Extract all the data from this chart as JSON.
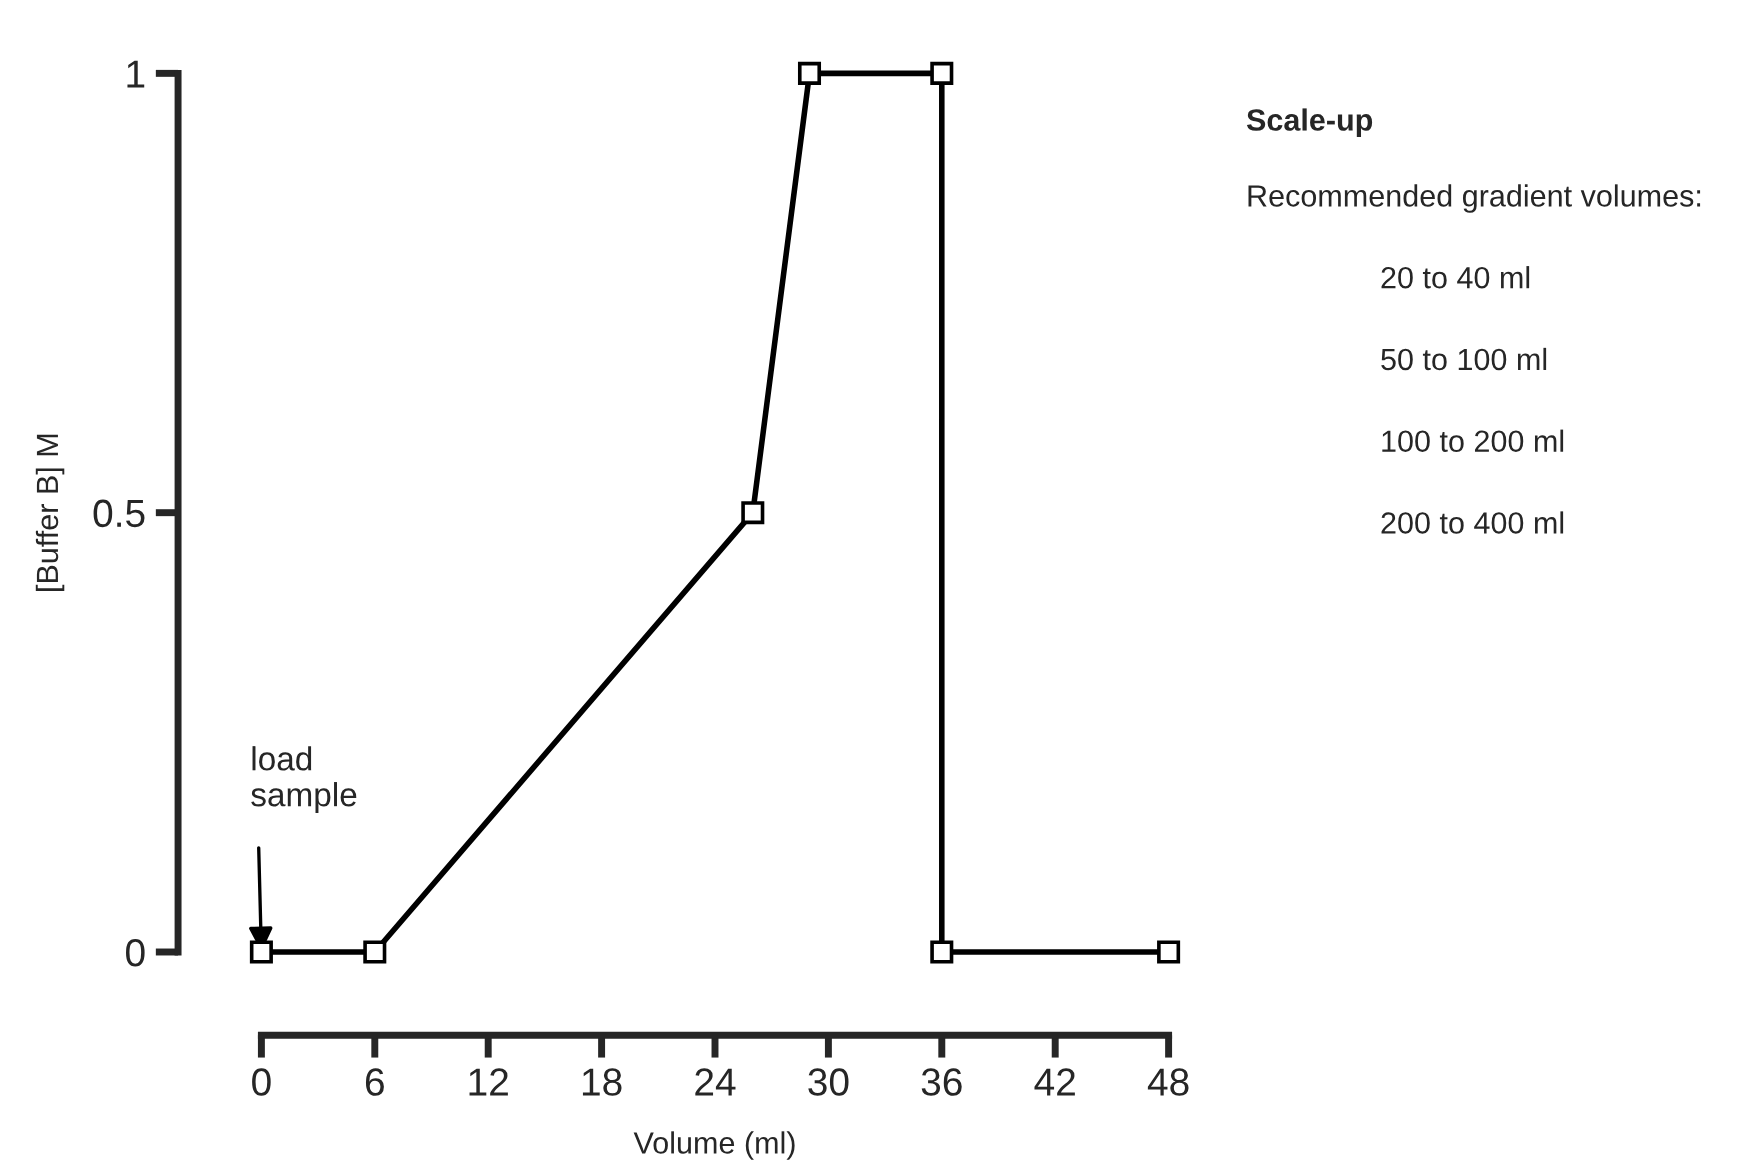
{
  "chart_data": {
    "type": "line",
    "xlabel": "Volume (ml)",
    "ylabel": "[Buffer B] M",
    "series": [
      {
        "color": "#000000",
        "x": [
          0,
          6,
          26,
          29,
          36,
          36,
          48
        ],
        "values": [
          0,
          0,
          0.5,
          1,
          1,
          0,
          0
        ]
      }
    ],
    "xlim": [
      0,
      48
    ],
    "xticks": [
      0,
      6,
      12,
      18,
      24,
      30,
      36,
      42,
      48
    ],
    "ylim": [
      0,
      1
    ],
    "yticks": [
      0,
      0.5,
      1
    ],
    "marker": "square",
    "line_style": "solid",
    "grid": false,
    "legend": false,
    "annotations": [
      {
        "text": "load\nsample",
        "x": 0,
        "y": 0
      },
      "Scale-up",
      "Recommended gradient volumes:",
      "20 to 40 ml",
      "50 to 100 ml",
      "100 to 200 ml",
      "200 to 400 ml"
    ]
  }
}
